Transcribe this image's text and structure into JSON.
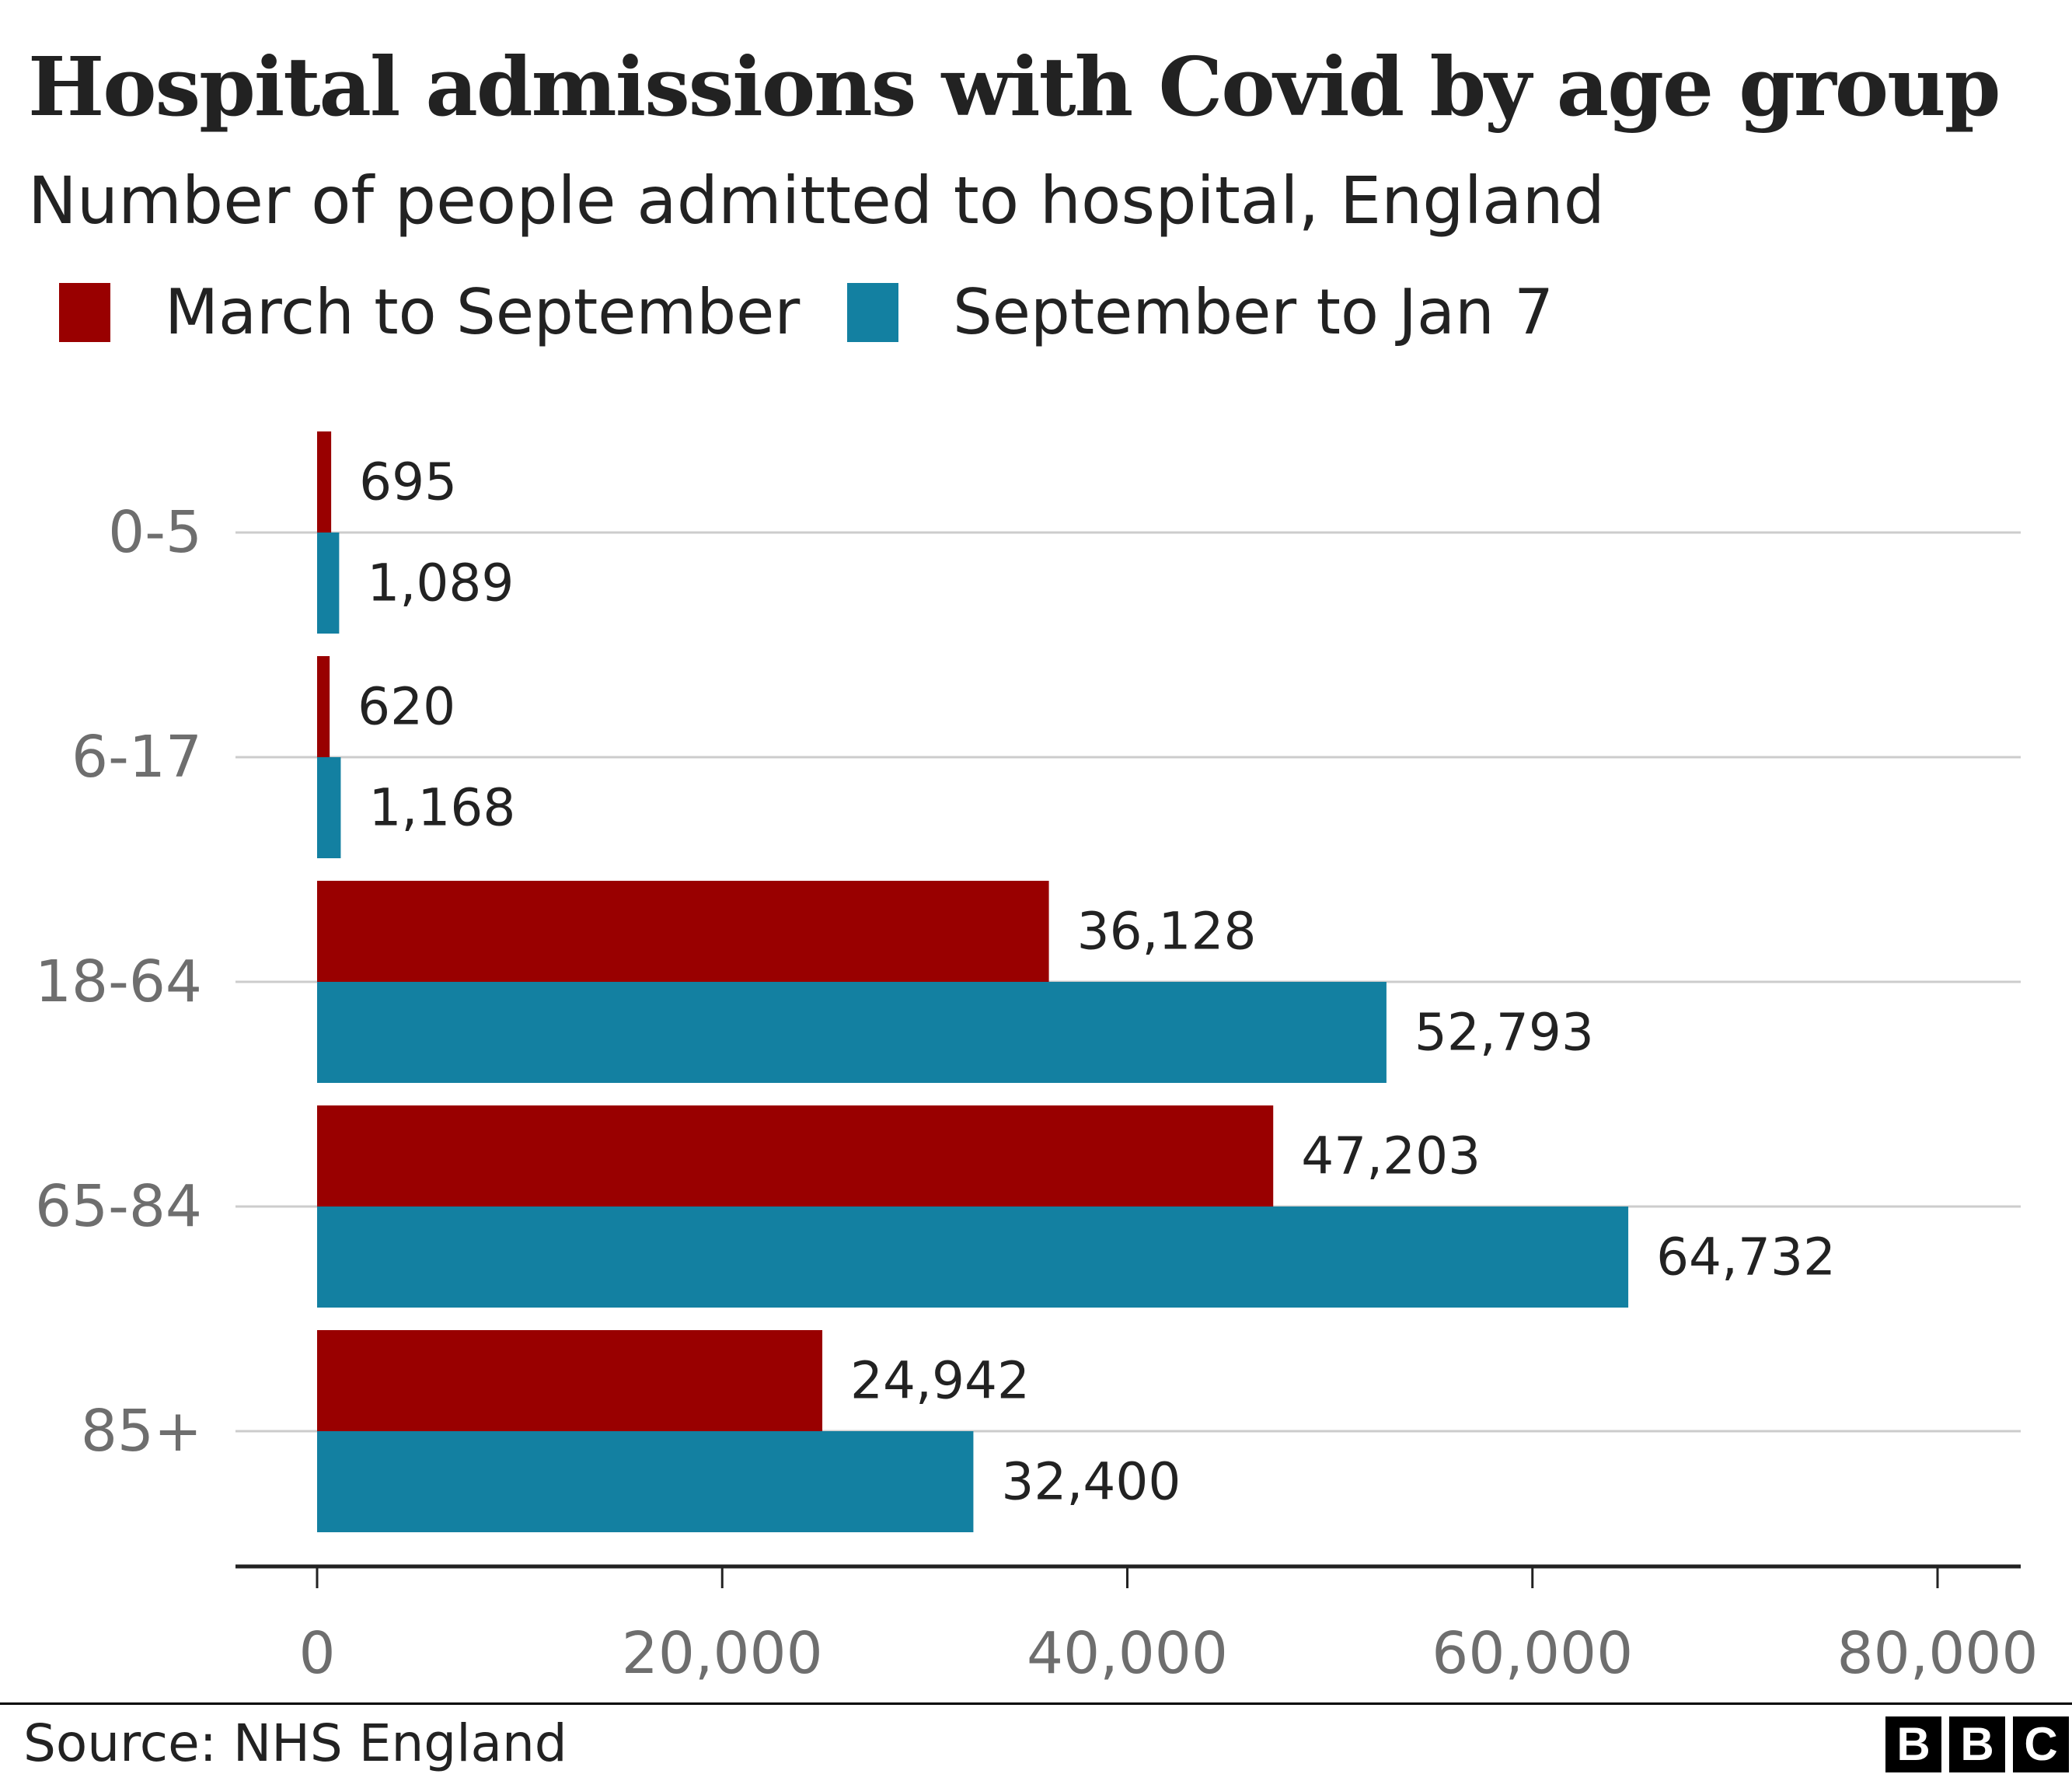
{
  "chart_data": {
    "type": "bar",
    "orientation": "horizontal",
    "title": "Hospital admissions with Covid by age group",
    "subtitle": "Number of people admitted to hospital, England",
    "categories": [
      "0-5",
      "6-17",
      "18-64",
      "65-84",
      "85+"
    ],
    "series": [
      {
        "name": "March to September",
        "color": "#990000",
        "values": [
          695,
          620,
          36128,
          47203,
          24942
        ],
        "labels": [
          "695",
          "620",
          "36,128",
          "47,203",
          "24,942"
        ]
      },
      {
        "name": "September to Jan 7",
        "color": "#1380A1",
        "values": [
          1089,
          1168,
          52793,
          64732,
          32400
        ],
        "labels": [
          "1,089",
          "1,168",
          "52,793",
          "64,732",
          "32,400"
        ]
      }
    ],
    "xlim": [
      0,
      80000
    ],
    "xticks": [
      0,
      20000,
      40000,
      60000,
      80000
    ],
    "xtick_labels": [
      "0",
      "20,000",
      "40,000",
      "60,000",
      "80,000"
    ],
    "grid": true,
    "legend_position": "top-left",
    "source": "Source: NHS England"
  },
  "branding": {
    "logo_letters": [
      "B",
      "B",
      "C"
    ]
  },
  "colors": {
    "grid": "#cccccc",
    "axis": "#222222",
    "tick_label": "#6e6e6e",
    "value_label": "#222222"
  }
}
